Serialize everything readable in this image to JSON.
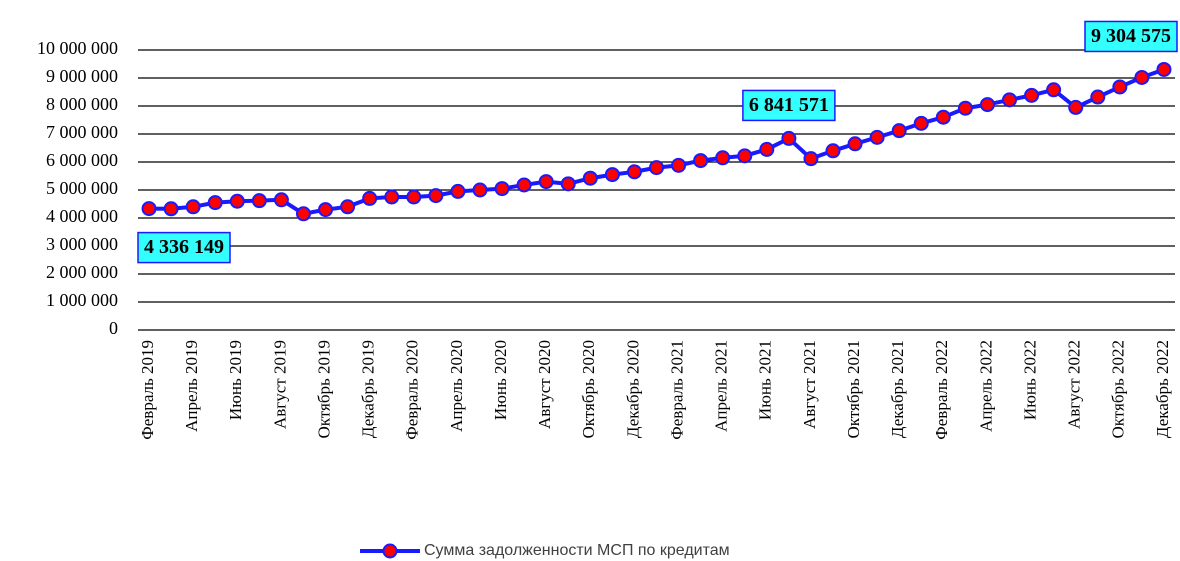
{
  "chart_data": {
    "type": "line",
    "categories": [
      "Февраль 2019",
      null,
      "Апрель 2019",
      null,
      "Июнь 2019",
      null,
      "Август 2019",
      null,
      "Октябрь 2019",
      null,
      "Декабрь 2019",
      null,
      "Февраль 2020",
      null,
      "Апрель 2020",
      null,
      "Июнь 2020",
      null,
      "Август 2020",
      null,
      "Октябрь 2020",
      null,
      "Декабрь 2020",
      null,
      "Февраль 2021",
      null,
      "Апрель 2021",
      null,
      "Июнь 2021",
      null,
      "Август 2021",
      null,
      "Октябрь 2021",
      null,
      "Декабрь 2021",
      null,
      "Февраль 2022",
      null,
      "Апрель 2022",
      null,
      "Июнь 2022",
      null,
      "Август 2022",
      null,
      "Октябрь 2022",
      null,
      "Декабрь 2022"
    ],
    "series": [
      {
        "name": "Сумма задолженности МСП по кредитам",
        "color": "#1a1aff",
        "marker_color": "#ff0000",
        "values": [
          4336149,
          4330000,
          4400000,
          4550000,
          4600000,
          4620000,
          4650000,
          4150000,
          4300000,
          4400000,
          4700000,
          4750000,
          4750000,
          4800000,
          4950000,
          5000000,
          5050000,
          5180000,
          5300000,
          5220000,
          5420000,
          5550000,
          5650000,
          5800000,
          5880000,
          6050000,
          6150000,
          6220000,
          6450000,
          6841571,
          6120000,
          6400000,
          6650000,
          6880000,
          7120000,
          7380000,
          7600000,
          7920000,
          8050000,
          8220000,
          8380000,
          8580000,
          7950000,
          8320000,
          8680000,
          9020000,
          9304575
        ],
        "value_labels": [
          "4 336 149",
          null,
          null,
          null,
          null,
          null,
          null,
          null,
          null,
          null,
          null,
          null,
          null,
          null,
          null,
          null,
          null,
          null,
          null,
          null,
          null,
          null,
          null,
          null,
          null,
          null,
          null,
          null,
          null,
          "6 841 571",
          null,
          null,
          null,
          null,
          null,
          null,
          null,
          null,
          null,
          null,
          null,
          null,
          null,
          null,
          null,
          null,
          "9 304 575"
        ]
      }
    ],
    "ylim": [
      0,
      10000000
    ],
    "yticks": [
      0,
      {
        "value": 1000000,
        "label": "1 000 000"
      },
      {
        "value": 2000000,
        "label": "2 000 000"
      },
      {
        "value": 3000000,
        "label": "3 000 000"
      },
      {
        "value": 4000000,
        "label": "4 000 000"
      },
      {
        "value": 5000000,
        "label": "5 000 000"
      },
      {
        "value": 6000000,
        "label": "6 000 000"
      },
      {
        "value": 7000000,
        "label": "7 000 000"
      },
      {
        "value": 8000000,
        "label": "8 000 000"
      },
      {
        "value": 9000000,
        "label": "9 000 000"
      },
      {
        "value": 10000000,
        "label": "10 000 000"
      }
    ],
    "grid": true,
    "legend": "bottom"
  }
}
